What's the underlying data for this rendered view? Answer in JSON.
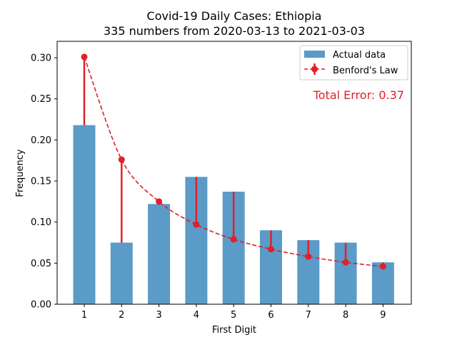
{
  "chart_data": {
    "type": "bar",
    "title_line1": "Covid-19 Daily Cases: Ethiopia",
    "title_line2": "335 numbers from 2020-03-13 to 2021-03-03",
    "xlabel": "First Digit",
    "ylabel": "Frequency",
    "categories": [
      1,
      2,
      3,
      4,
      5,
      6,
      7,
      8,
      9
    ],
    "ylim": [
      0,
      0.32
    ],
    "yticks": [
      0.0,
      0.05,
      0.1,
      0.15,
      0.2,
      0.25,
      0.3
    ],
    "ytick_labels": [
      "0.00",
      "0.05",
      "0.10",
      "0.15",
      "0.20",
      "0.25",
      "0.30"
    ],
    "series": [
      {
        "name": "Actual data",
        "kind": "bar",
        "color": "#5b9bc8",
        "values": [
          0.218,
          0.075,
          0.122,
          0.155,
          0.137,
          0.09,
          0.078,
          0.075,
          0.051
        ]
      },
      {
        "name": "Benford's Law",
        "kind": "line",
        "style": "dashed",
        "color": "#e0202a",
        "values": [
          0.301,
          0.176,
          0.125,
          0.097,
          0.079,
          0.067,
          0.058,
          0.051,
          0.046
        ]
      }
    ],
    "legend_position": "top-right",
    "annotation": "Total Error: 0.37",
    "annotation_color": "#e0202a"
  }
}
